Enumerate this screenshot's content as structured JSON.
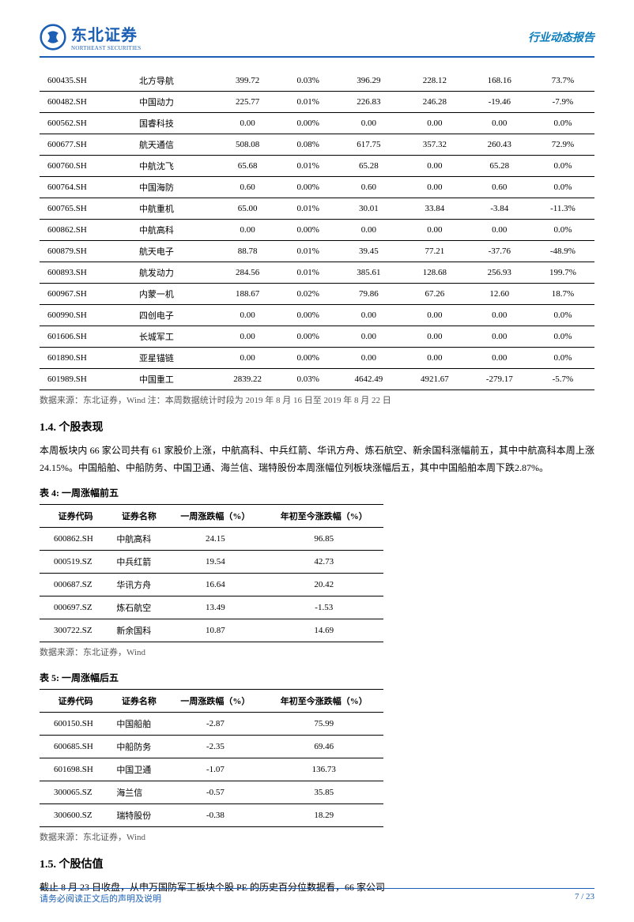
{
  "header": {
    "company_cn": "东北证券",
    "company_en": "NORTHEAST SECURITIES",
    "report_type": "行业动态报告"
  },
  "colors": {
    "brand": "#1a5fb4",
    "accent": "#0b7dbf",
    "text_muted": "#555555",
    "background": "#ffffff",
    "rule": "#000000"
  },
  "table1": {
    "rows": [
      [
        "600435.SH",
        "北方导航",
        "399.72",
        "0.03%",
        "396.29",
        "228.12",
        "168.16",
        "73.7%"
      ],
      [
        "600482.SH",
        "中国动力",
        "225.77",
        "0.01%",
        "226.83",
        "246.28",
        "-19.46",
        "-7.9%"
      ],
      [
        "600562.SH",
        "国睿科技",
        "0.00",
        "0.00%",
        "0.00",
        "0.00",
        "0.00",
        "0.0%"
      ],
      [
        "600677.SH",
        "航天通信",
        "508.08",
        "0.08%",
        "617.75",
        "357.32",
        "260.43",
        "72.9%"
      ],
      [
        "600760.SH",
        "中航沈飞",
        "65.68",
        "0.01%",
        "65.28",
        "0.00",
        "65.28",
        "0.0%"
      ],
      [
        "600764.SH",
        "中国海防",
        "0.60",
        "0.00%",
        "0.60",
        "0.00",
        "0.60",
        "0.0%"
      ],
      [
        "600765.SH",
        "中航重机",
        "65.00",
        "0.01%",
        "30.01",
        "33.84",
        "-3.84",
        "-11.3%"
      ],
      [
        "600862.SH",
        "中航高科",
        "0.00",
        "0.00%",
        "0.00",
        "0.00",
        "0.00",
        "0.0%"
      ],
      [
        "600879.SH",
        "航天电子",
        "88.78",
        "0.01%",
        "39.45",
        "77.21",
        "-37.76",
        "-48.9%"
      ],
      [
        "600893.SH",
        "航发动力",
        "284.56",
        "0.01%",
        "385.61",
        "128.68",
        "256.93",
        "199.7%"
      ],
      [
        "600967.SH",
        "内蒙一机",
        "188.67",
        "0.02%",
        "79.86",
        "67.26",
        "12.60",
        "18.7%"
      ],
      [
        "600990.SH",
        "四创电子",
        "0.00",
        "0.00%",
        "0.00",
        "0.00",
        "0.00",
        "0.0%"
      ],
      [
        "601606.SH",
        "长城军工",
        "0.00",
        "0.00%",
        "0.00",
        "0.00",
        "0.00",
        "0.0%"
      ],
      [
        "601890.SH",
        "亚星锚链",
        "0.00",
        "0.00%",
        "0.00",
        "0.00",
        "0.00",
        "0.0%"
      ],
      [
        "601989.SH",
        "中国重工",
        "2839.22",
        "0.03%",
        "4642.49",
        "4921.67",
        "-279.17",
        "-5.7%"
      ]
    ],
    "source": "数据来源：东北证券，Wind 注：本周数据统计时段为 2019 年 8 月 16 日至 2019 年 8 月 22 日"
  },
  "section14": {
    "heading": "1.4.  个股表现",
    "para": "本周板块内 66 家公司共有 61 家股价上涨，中航高科、中兵红箭、华讯方舟、炼石航空、新余国科涨幅前五，其中中航高科本周上涨 24.15%。中国船舶、中船防务、中国卫通、海兰信、瑞特股份本周涨幅位列板块涨幅后五，其中中国船舶本周下跌2.87%。"
  },
  "table4": {
    "title": "表 4:  一周涨幅前五",
    "columns": [
      "证券代码",
      "证券名称",
      "一周涨跌幅（%）",
      "年初至今涨跌幅（%）"
    ],
    "rows": [
      [
        "600862.SH",
        "中航高科",
        "24.15",
        "96.85"
      ],
      [
        "000519.SZ",
        "中兵红箭",
        "19.54",
        "42.73"
      ],
      [
        "000687.SZ",
        "华讯方舟",
        "16.64",
        "20.42"
      ],
      [
        "000697.SZ",
        "炼石航空",
        "13.49",
        "-1.53"
      ],
      [
        "300722.SZ",
        "新余国科",
        "10.87",
        "14.69"
      ]
    ],
    "source": "数据来源：东北证券，Wind"
  },
  "table5": {
    "title": "表 5:  一周涨幅后五",
    "columns": [
      "证券代码",
      "证券名称",
      "一周涨跌幅（%）",
      "年初至今涨跌幅（%）"
    ],
    "rows": [
      [
        "600150.SH",
        "中国船舶",
        "-2.87",
        "75.99"
      ],
      [
        "600685.SH",
        "中船防务",
        "-2.35",
        "69.46"
      ],
      [
        "601698.SH",
        "中国卫通",
        "-1.07",
        "136.73"
      ],
      [
        "300065.SZ",
        "海兰信",
        "-0.57",
        "35.85"
      ],
      [
        "300600.SZ",
        "瑞特股份",
        "-0.38",
        "18.29"
      ]
    ],
    "source": "数据来源：东北证券，Wind"
  },
  "section15": {
    "heading": "1.5.  个股估值",
    "para": "截止 8 月 23 日收盘，从申万国防军工板块个股 PE 的历史百分位数据看，66 家公司"
  },
  "footer": {
    "disclaimer": "请务必阅读正文后的声明及说明",
    "page": "7 / 23"
  }
}
